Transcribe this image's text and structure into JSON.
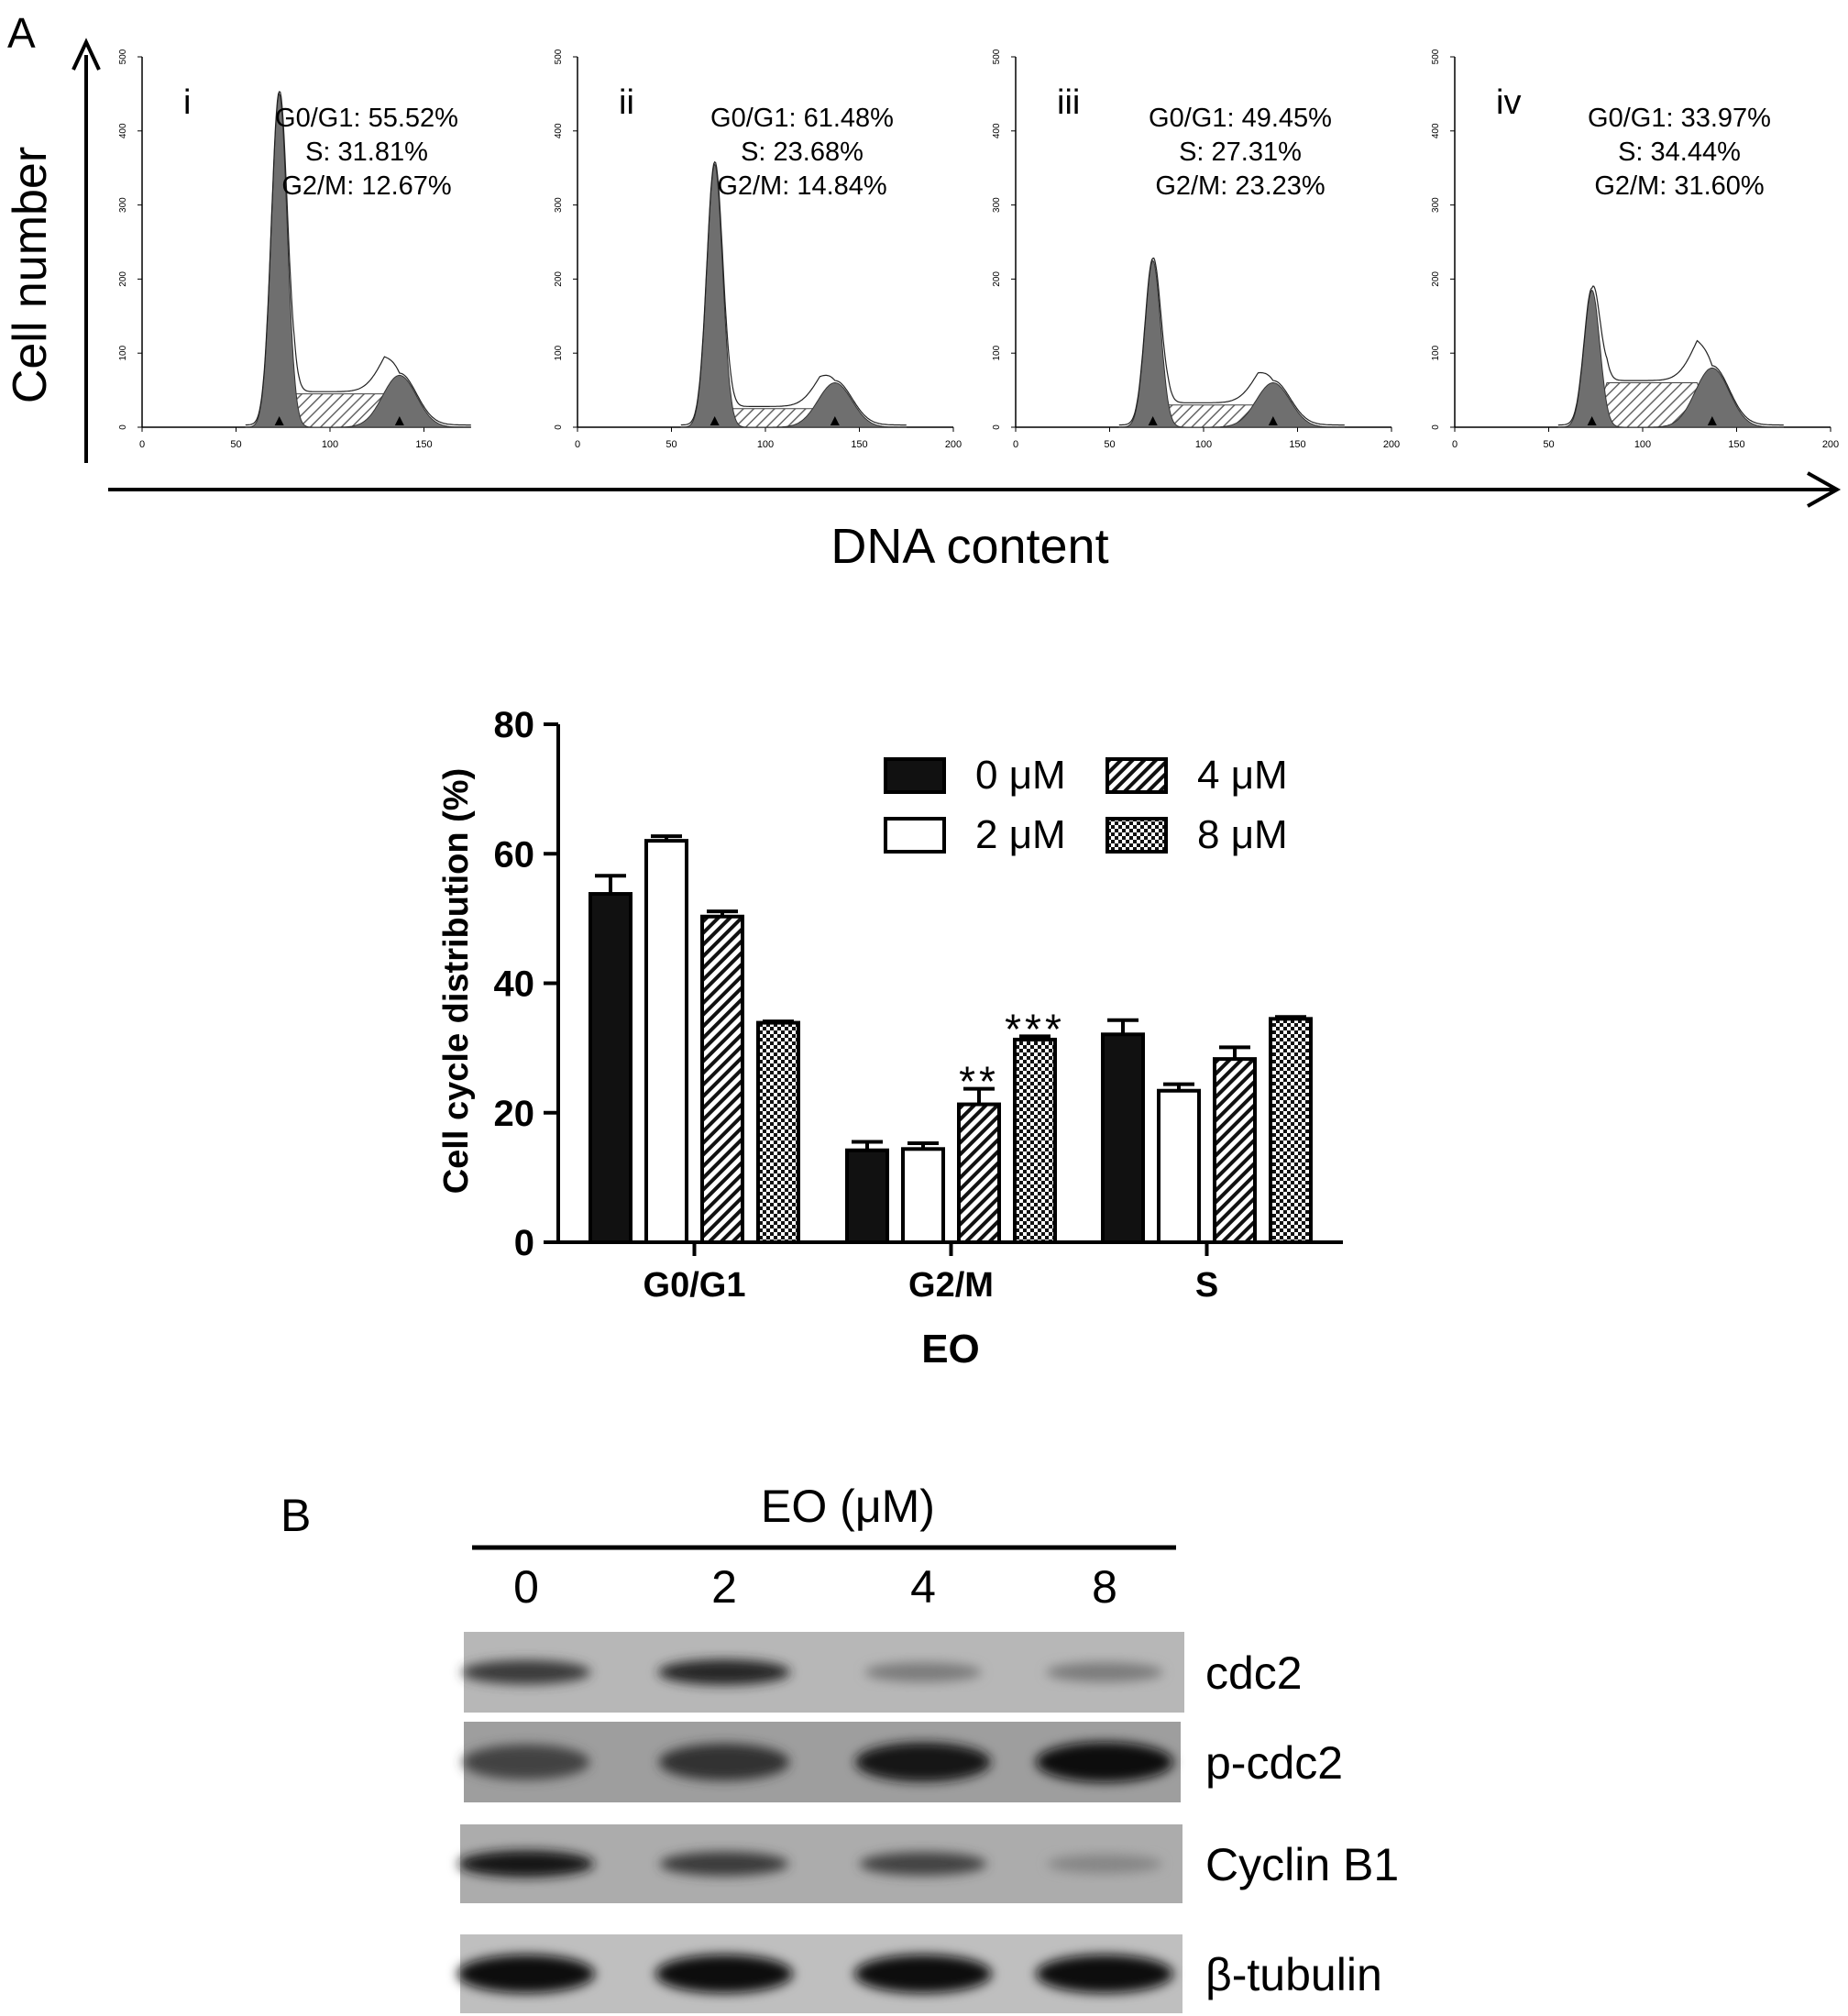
{
  "panel_a_label": "A",
  "panel_b_label": "B",
  "flow": {
    "y_axis_label": "Cell number",
    "x_axis_label": "DNA content",
    "y_ticks": [
      "0",
      "100",
      "200",
      "300",
      "400",
      "500"
    ],
    "x_ticks": [
      "0",
      "50",
      "100",
      "150",
      "200"
    ],
    "panels": [
      {
        "roman": "i",
        "g0g1": "G0/G1: 55.52%",
        "s": "S: 31.81%",
        "g2m": "G2/M: 12.67%",
        "x_max": 175
      },
      {
        "roman": "ii",
        "g0g1": "G0/G1: 61.48%",
        "s": "S: 23.68%",
        "g2m": "G2/M: 14.84%",
        "x_max": 200
      },
      {
        "roman": "iii",
        "g0g1": "G0/G1: 49.45%",
        "s": "S: 27.31%",
        "g2m": "G2/M: 23.23%",
        "x_max": 200
      },
      {
        "roman": "iv",
        "g0g1": "G0/G1: 33.97%",
        "s": "S: 34.44%",
        "g2m": "G2/M: 31.60%",
        "x_max": 200
      }
    ],
    "peak_heights": [
      450,
      355,
      225,
      185
    ],
    "s_levels": [
      45,
      25,
      30,
      60
    ],
    "g2m_heights": [
      70,
      60,
      60,
      80
    ]
  },
  "chart_data": {
    "type": "bar",
    "title": "",
    "xlabel": "EO",
    "ylabel": "Cell cycle distribution (%)",
    "ylim": [
      0,
      80
    ],
    "yticks": [
      0,
      20,
      40,
      60,
      80
    ],
    "categories": [
      "G0/G1",
      "G2/M",
      "S"
    ],
    "legend_position": "top-right",
    "series": [
      {
        "name": "0 μM",
        "pattern": "solid-black",
        "values": [
          53.8,
          14.2,
          32.1
        ],
        "errors": [
          2.8,
          1.3,
          2.2
        ]
      },
      {
        "name": "2 μM",
        "pattern": "open-white",
        "values": [
          62.0,
          14.4,
          23.4
        ],
        "errors": [
          0.7,
          0.9,
          1.0
        ]
      },
      {
        "name": "4 μM",
        "pattern": "diagonal-hatch",
        "values": [
          50.3,
          21.3,
          28.3
        ],
        "errors": [
          0.8,
          2.4,
          1.8
        ]
      },
      {
        "name": "8 μM",
        "pattern": "checkered",
        "values": [
          33.9,
          31.3,
          34.5
        ],
        "errors": [
          0.2,
          0.5,
          0.3
        ]
      }
    ],
    "annotations": [
      {
        "category": "G2/M",
        "series": "4 μM",
        "text": "**"
      },
      {
        "category": "G2/M",
        "series": "8 μM",
        "text": "***"
      }
    ]
  },
  "western": {
    "header": "EO (μM)",
    "lanes": [
      "0",
      "2",
      "4",
      "8"
    ],
    "rows": [
      {
        "label": "cdc2",
        "intensities": [
          0.75,
          0.85,
          0.4,
          0.4
        ]
      },
      {
        "label": "p-cdc2",
        "intensities": [
          0.7,
          0.8,
          0.95,
          1.0
        ]
      },
      {
        "label": "Cyclin B1",
        "intensities": [
          0.95,
          0.75,
          0.7,
          0.35
        ]
      },
      {
        "label": "β-tubulin",
        "intensities": [
          1.0,
          1.0,
          1.0,
          1.0
        ]
      }
    ]
  }
}
